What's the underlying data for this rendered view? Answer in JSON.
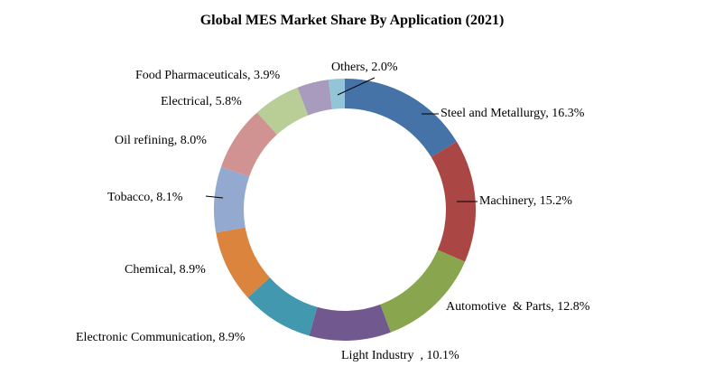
{
  "chart_data": {
    "type": "pie",
    "title": "Global MES Market Share By Application (2021)",
    "donut": true,
    "unit": "%",
    "slices": [
      {
        "name": "Steel and Metallurgy",
        "label": "Steel and Metallurgy, 16.3%",
        "value": 16.3,
        "color": "#4572A7"
      },
      {
        "name": "Machinery",
        "label": "Machinery, 15.2%",
        "value": 15.2,
        "color": "#AA4643"
      },
      {
        "name": "Automotive & Parts",
        "label": "Automotive  & Parts, 12.8%",
        "value": 12.8,
        "color": "#89A54E"
      },
      {
        "name": "Light Industry",
        "label": "Light Industry  , 10.1%",
        "value": 10.1,
        "color": "#71588F"
      },
      {
        "name": "Electronic Communication",
        "label": "Electronic Communication, 8.9%",
        "value": 8.9,
        "color": "#4198AF"
      },
      {
        "name": "Chemical",
        "label": "Chemical, 8.9%",
        "value": 8.9,
        "color": "#DB843D"
      },
      {
        "name": "Tobacco",
        "label": "Tobacco, 8.1%",
        "value": 8.1,
        "color": "#93A9CF"
      },
      {
        "name": "Oil refining",
        "label": "Oil refining, 8.0%",
        "value": 8.0,
        "color": "#D19392"
      },
      {
        "name": "Electrical",
        "label": "Electrical, 5.8%",
        "value": 5.8,
        "color": "#B9CD96"
      },
      {
        "name": "Food Pharmaceuticals",
        "label": "Food Pharmaceuticals, 3.9%",
        "value": 3.9,
        "color": "#A99BBD"
      },
      {
        "name": "Others",
        "label": "Others, 2.0%",
        "value": 2.0,
        "color": "#92C5D6"
      }
    ]
  }
}
